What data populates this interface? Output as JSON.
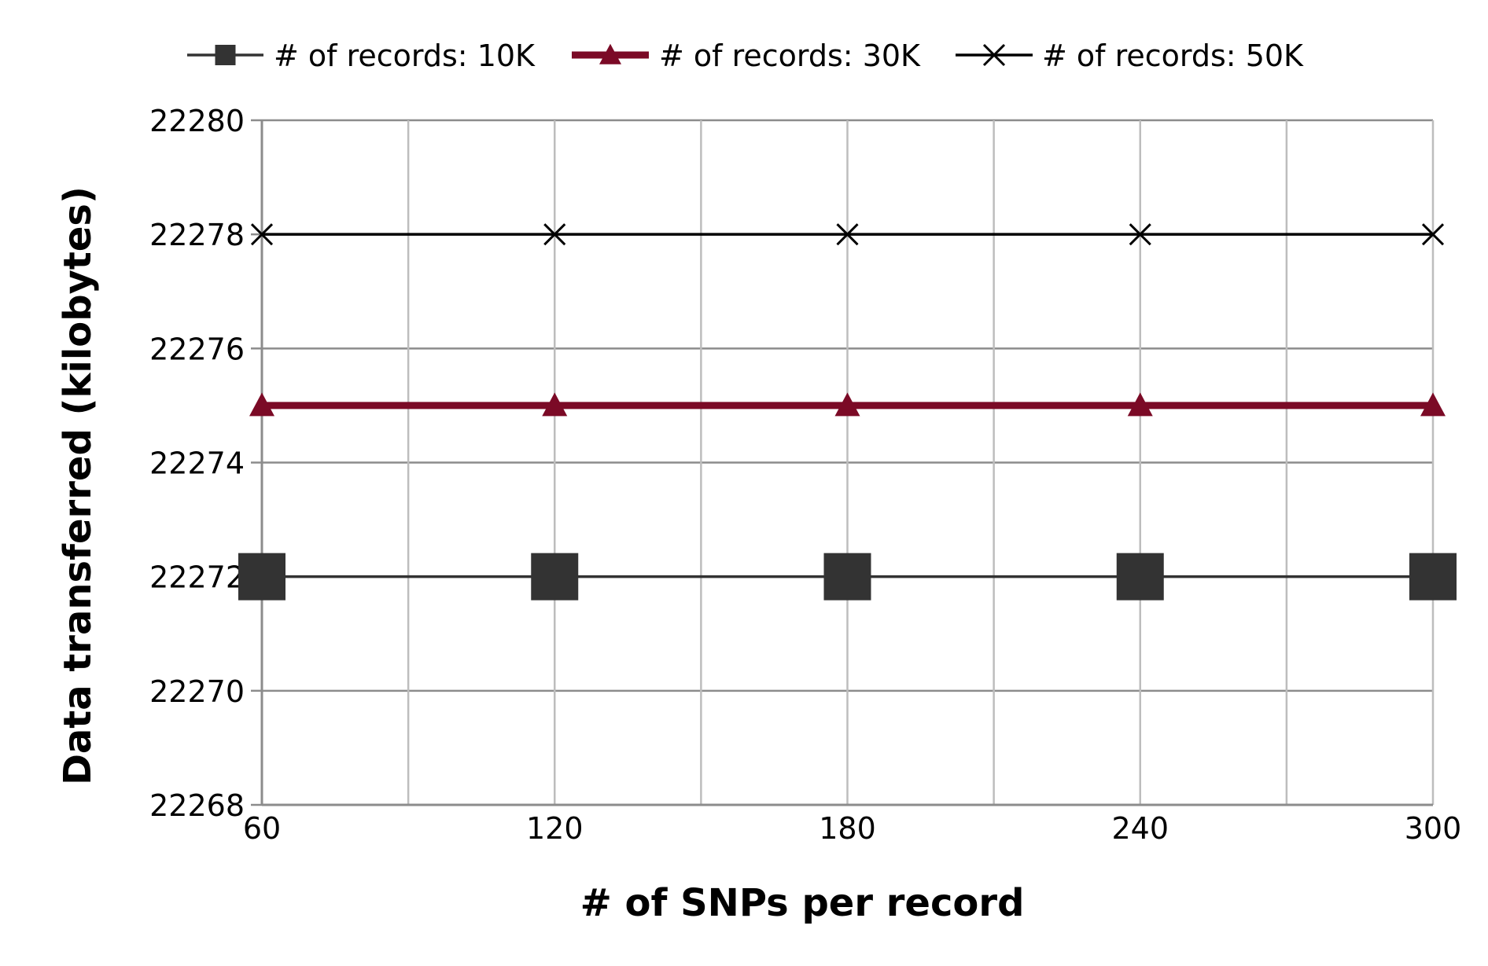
{
  "chart_data": {
    "type": "line",
    "xlabel": "# of SNPs per record",
    "ylabel": "Data transferred (kilobytes)",
    "x": [
      60,
      120,
      180,
      240,
      300
    ],
    "xticks": [
      "60",
      "120",
      "180",
      "240",
      "300"
    ],
    "xlim": [
      60,
      300
    ],
    "ylim": [
      22268,
      22280
    ],
    "yticks": [
      "22268",
      "22270",
      "22272",
      "22274",
      "22276",
      "22278",
      "22280"
    ],
    "grid": true,
    "legend_position": "top",
    "series": [
      {
        "name": "# of records: 10K",
        "values": [
          22272,
          22272,
          22272,
          22272,
          22272
        ],
        "color": "#333333",
        "marker": "square",
        "line_width": "thin"
      },
      {
        "name": "# of records: 30K",
        "values": [
          22275,
          22275,
          22275,
          22275,
          22275
        ],
        "color": "#7b0a26",
        "marker": "triangle",
        "line_width": "thick"
      },
      {
        "name": "# of records: 50K",
        "values": [
          22278,
          22278,
          22278,
          22278,
          22278
        ],
        "color": "#000000",
        "marker": "x",
        "line_width": "thin"
      }
    ]
  }
}
